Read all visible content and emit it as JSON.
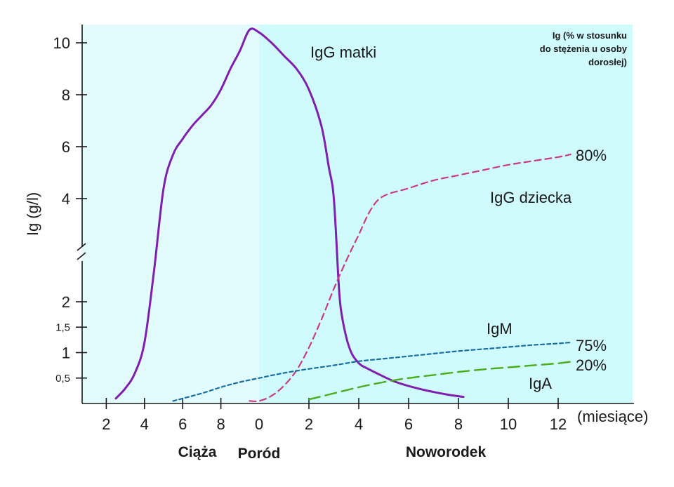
{
  "chart_data": {
    "type": "line",
    "ylabel": "Ig (g/l)",
    "xlabel": "(miesiące)",
    "corner_note": [
      "Ig (% w stosunku",
      "do stężenia u osoby",
      "dorosłej)"
    ],
    "phases": [
      "Ciąża",
      "Poród",
      "Noworodek"
    ],
    "background_colors": {
      "pregnancy": "#e2fbfd",
      "newborn": "#d0fbfc"
    },
    "y_ticks": [
      {
        "label": "10",
        "value": 10
      },
      {
        "label": "8",
        "value": 8
      },
      {
        "label": "6",
        "value": 6
      },
      {
        "label": "4",
        "value": 4
      },
      {
        "label": "2",
        "value": 2
      },
      {
        "label": "1,5",
        "value": 1.5
      },
      {
        "label": "1",
        "value": 1
      },
      {
        "label": "0,5",
        "value": 0.5
      }
    ],
    "x_ticks_pregnancy": [
      "2",
      "4",
      "6",
      "8"
    ],
    "x_ticks_newborn": [
      "0",
      "2",
      "4",
      "6",
      "8",
      "10",
      "12"
    ],
    "series": [
      {
        "name": "IgG matki",
        "color": "#7e1fb0",
        "style": "solid",
        "x": [
          -7.5,
          -7.0,
          -6.5,
          -6.0,
          -5.5,
          -5.0,
          -4.5,
          -4.0,
          -3.5,
          -3.0,
          -2.5,
          -2.0,
          -1.5,
          -1.0,
          -0.5,
          0.0,
          0.5,
          1.0,
          1.5,
          2.0,
          2.5,
          2.8,
          3.0,
          3.2,
          3.3,
          3.5,
          3.7,
          3.9,
          4.1,
          4.3,
          4.7,
          5.5,
          6.5,
          7.5,
          8.2
        ],
        "y": [
          0.1,
          0.3,
          0.6,
          1.2,
          2.6,
          4.4,
          5.7,
          6.3,
          6.8,
          7.2,
          7.6,
          8.2,
          9.0,
          9.7,
          10.5,
          10.4,
          10.0,
          9.5,
          9.0,
          8.2,
          6.8,
          5.2,
          4.0,
          2.3,
          1.8,
          1.3,
          1.0,
          0.85,
          0.75,
          0.7,
          0.6,
          0.42,
          0.28,
          0.18,
          0.13
        ],
        "label": "IgG matki"
      },
      {
        "name": "IgG dziecka",
        "color": "#c93b86",
        "style": "dash",
        "x": [
          -0.5,
          0.0,
          0.5,
          1.0,
          1.5,
          2.0,
          2.5,
          3.0,
          3.5,
          4.0,
          4.5,
          5.0,
          6.0,
          7.0,
          8.0,
          9.0,
          10.0,
          11.0,
          12.0,
          12.5
        ],
        "y": [
          0.05,
          0.05,
          0.15,
          0.35,
          0.65,
          1.1,
          1.65,
          2.25,
          2.8,
          3.3,
          3.8,
          4.1,
          4.4,
          4.7,
          4.9,
          5.1,
          5.3,
          5.45,
          5.6,
          5.7
        ],
        "label": "IgG dziecka",
        "end_label": "80%"
      },
      {
        "name": "IgM",
        "color": "#1a6ea3",
        "style": "short-dash",
        "x": [
          -4.5,
          -3.0,
          -2.0,
          -1.0,
          0.0,
          1.0,
          2.0,
          3.0,
          4.0,
          5.0,
          6.0,
          7.0,
          8.0,
          9.0,
          10.0,
          11.0,
          12.0,
          12.5
        ],
        "y": [
          0.05,
          0.2,
          0.32,
          0.42,
          0.5,
          0.6,
          0.68,
          0.75,
          0.83,
          0.88,
          0.93,
          0.98,
          1.03,
          1.07,
          1.11,
          1.15,
          1.18,
          1.2
        ],
        "label": "IgM",
        "end_label": "75%"
      },
      {
        "name": "IgA",
        "color": "#4aab1c",
        "style": "long-dash",
        "x": [
          2.0,
          3.0,
          4.0,
          5.0,
          6.0,
          7.0,
          8.0,
          9.0,
          10.0,
          11.0,
          12.0,
          12.5
        ],
        "y": [
          0.08,
          0.2,
          0.32,
          0.42,
          0.5,
          0.56,
          0.62,
          0.67,
          0.71,
          0.75,
          0.79,
          0.82
        ],
        "label": "IgA",
        "end_label": "20%"
      }
    ]
  }
}
